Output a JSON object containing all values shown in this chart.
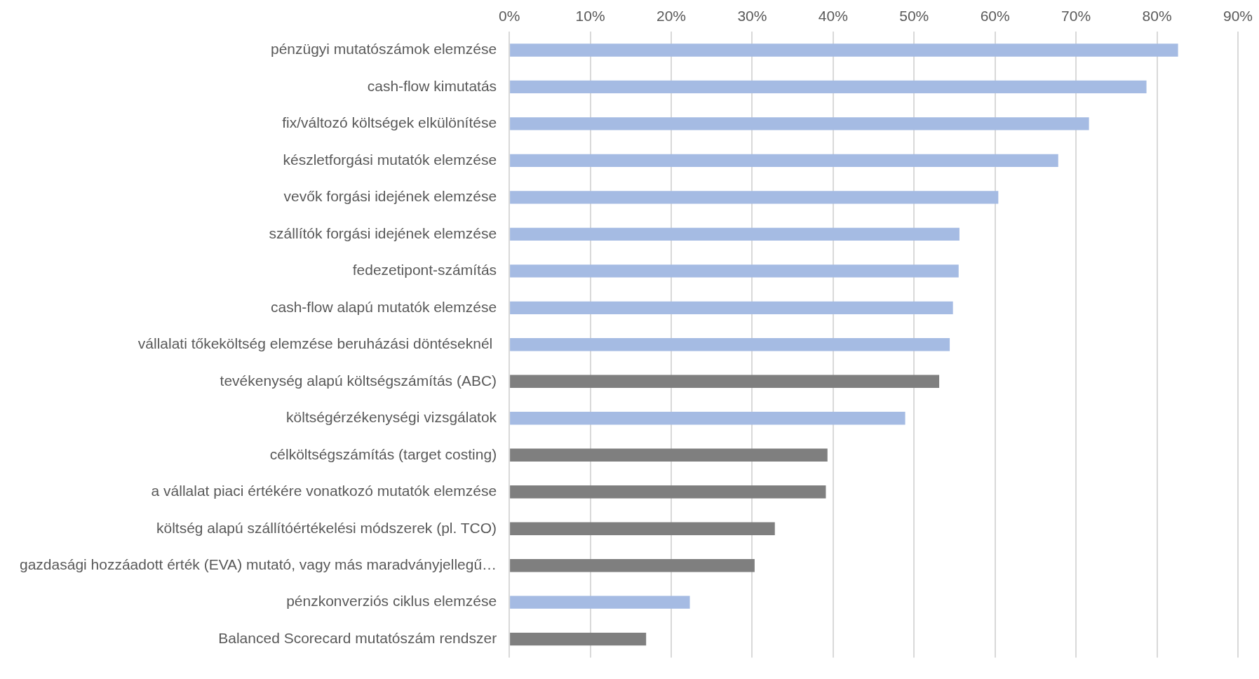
{
  "chart_data": {
    "type": "bar",
    "orientation": "horizontal",
    "categories": [
      "pénzügyi mutatószámok elemzése",
      "cash-flow kimutatás",
      "fix/változó költségek elkülönítése",
      "készletforgási mutatók elemzése",
      "vevők forgási idejének elemzése",
      "szállítók forgási idejének elemzése",
      "fedezetipont-számítás",
      "cash-flow alapú mutatók elemzése",
      "vállalati tőkeköltség elemzése beruházási döntéseknél ",
      "tevékenység alapú költségszámítás (ABC)",
      "költségérzékenységi vizsgálatok",
      "célköltségszámítás (target costing)",
      "a vállalat piaci értékére vonatkozó mutatók elemzése",
      "költség alapú szállítóértékelési módszerek (pl. TCO)",
      "gazdasági hozzáadott érték (EVA) mutató, vagy más maradványjellegű…",
      "pénzkonverziós ciklus elemzése",
      "Balanced Scorecard mutatószám rendszer"
    ],
    "values": [
      82.6,
      78.7,
      71.6,
      67.8,
      60.4,
      55.6,
      55.5,
      54.8,
      54.4,
      53.1,
      48.9,
      39.3,
      39.1,
      32.8,
      30.3,
      22.3,
      16.9
    ],
    "colors": [
      "#a5bbe3",
      "#a5bbe3",
      "#a5bbe3",
      "#a5bbe3",
      "#a5bbe3",
      "#a5bbe3",
      "#a5bbe3",
      "#a5bbe3",
      "#a5bbe3",
      "#7f7f7f",
      "#a5bbe3",
      "#7f7f7f",
      "#7f7f7f",
      "#7f7f7f",
      "#7f7f7f",
      "#a5bbe3",
      "#7f7f7f"
    ],
    "xlim": [
      0,
      90
    ],
    "xticks": [
      {
        "value": 0,
        "label": "0%"
      },
      {
        "value": 10,
        "label": "10%"
      },
      {
        "value": 20,
        "label": "20%"
      },
      {
        "value": 30,
        "label": "30%"
      },
      {
        "value": 40,
        "label": "40%"
      },
      {
        "value": 50,
        "label": "50%"
      },
      {
        "value": 60,
        "label": "60%"
      },
      {
        "value": 70,
        "label": "70%"
      },
      {
        "value": 80,
        "label": "80%"
      },
      {
        "value": 90,
        "label": "90%"
      }
    ],
    "grid": "x",
    "legend": false
  }
}
